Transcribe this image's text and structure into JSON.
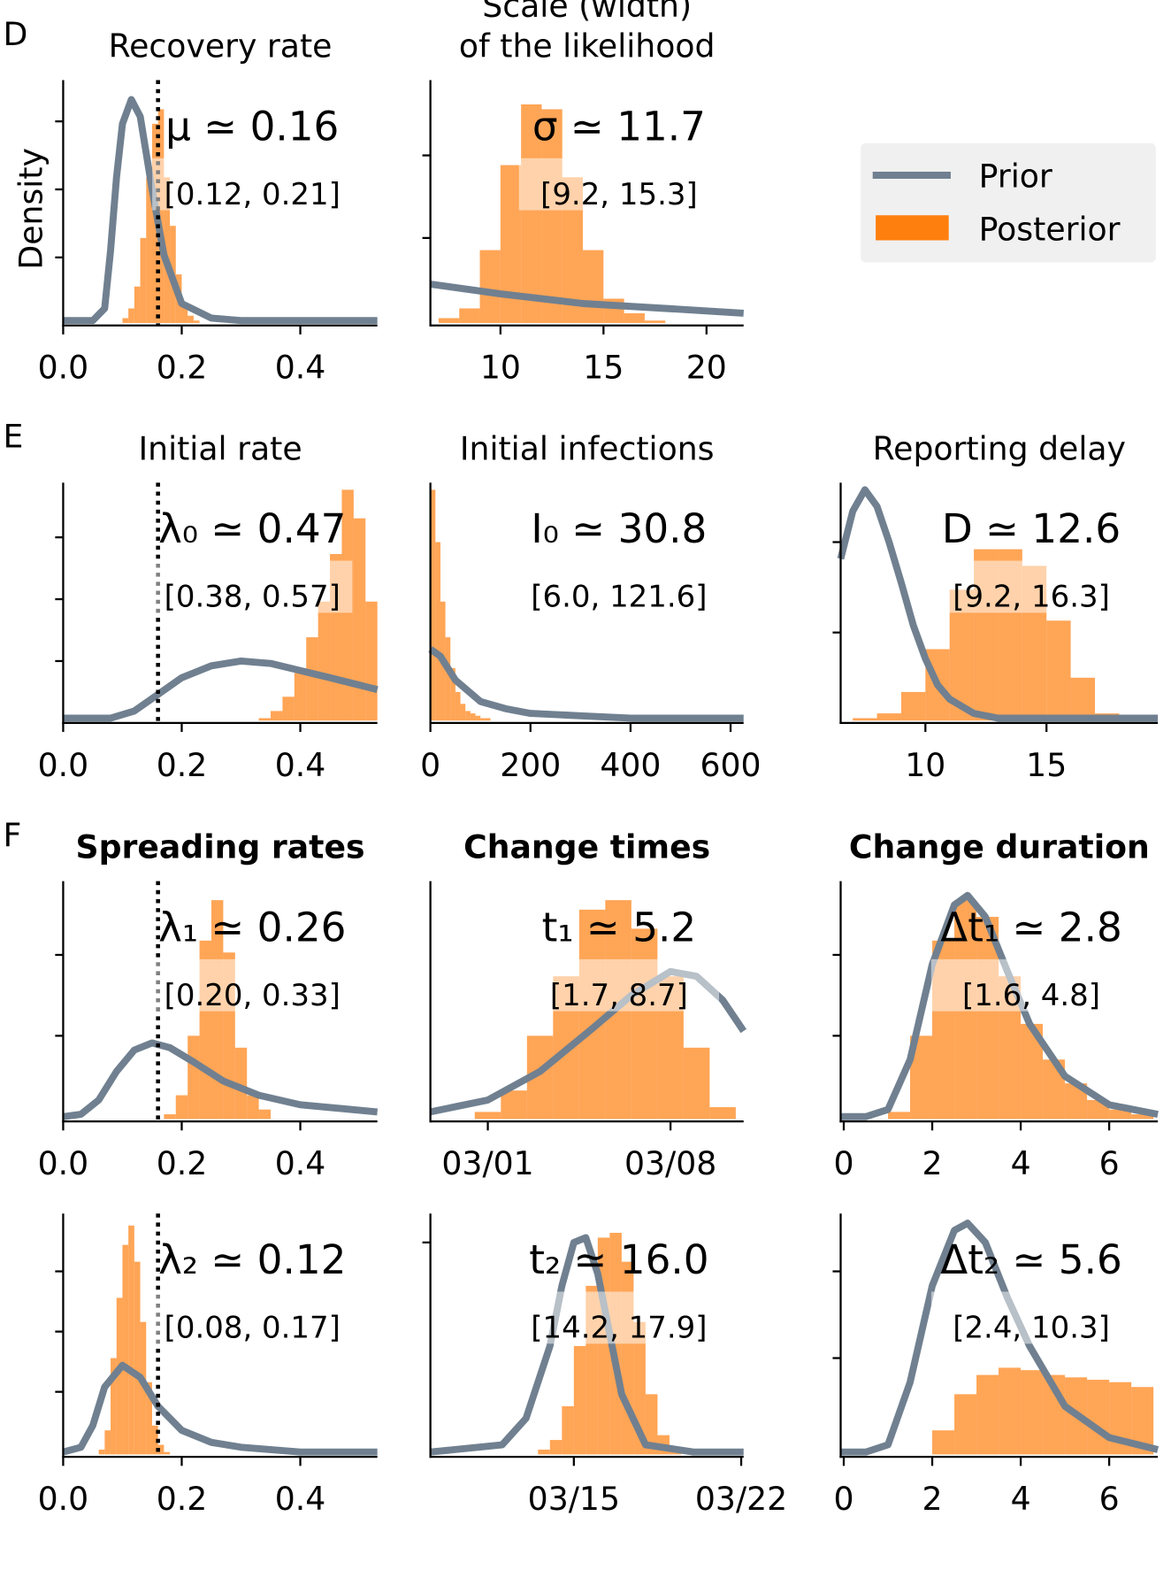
{
  "chart_data": [
    {
      "type": "histogram",
      "panel_label": "D",
      "title": [
        "Recovery rate"
      ],
      "ylabel": "Density",
      "legend": "upper right",
      "annotation": "μ ≃ 0.16",
      "interval": "[0.12, 0.21]",
      "vline": 0.16,
      "xlim": [
        0,
        0.53
      ],
      "xticks": [
        {
          "value": 0,
          "label": "0.0"
        },
        0.2,
        0.4
      ],
      "ylim": [
        -0.01,
        1
      ],
      "yticks": [
        0.27,
        0.55,
        0.83
      ],
      "series": [
        {
          "name": "Prior",
          "color": "#708090",
          "x": [
            0,
            0.05,
            0.07,
            0.08,
            0.09,
            0.1,
            0.115,
            0.13,
            0.15,
            0.17,
            0.2,
            0.25,
            0.3,
            0.53
          ],
          "values": [
            0.01,
            0.01,
            0.06,
            0.3,
            0.6,
            0.82,
            0.92,
            0.85,
            0.55,
            0.28,
            0.08,
            0.02,
            0.01,
            0.01
          ]
        },
        {
          "name": "Posterior",
          "color": "#ff7f0e",
          "bins": [
            0.1,
            0.11,
            0.12,
            0.13,
            0.14,
            0.15,
            0.16,
            0.17,
            0.18,
            0.19,
            0.2,
            0.21,
            0.22,
            0.23
          ],
          "values": [
            0.02,
            0.06,
            0.15,
            0.35,
            0.6,
            0.82,
            0.88,
            0.6,
            0.4,
            0.2,
            0.08,
            0.03,
            0.01
          ]
        }
      ]
    },
    {
      "type": "histogram",
      "title": [
        "Scale (width)",
        "of the likelihood"
      ],
      "annotation": "σ ≃ 11.7",
      "interval": "[9.2, 15.3]",
      "xlim": [
        6.6,
        21.8
      ],
      "xticks": [
        10,
        15,
        20
      ],
      "ylim": [
        -0.01,
        1
      ],
      "yticks": [
        0.35,
        0.69
      ],
      "series": [
        {
          "color": "#708090",
          "x": [
            6.6,
            10,
            14,
            18,
            21.8
          ],
          "values": [
            0.16,
            0.12,
            0.08,
            0.06,
            0.04
          ]
        },
        {
          "color": "#ff7f0e",
          "bins": [
            7,
            8,
            9,
            10,
            11,
            12,
            13,
            14,
            15,
            16,
            17,
            18
          ],
          "values": [
            0.02,
            0.06,
            0.3,
            0.65,
            0.9,
            0.88,
            0.6,
            0.3,
            0.1,
            0.04,
            0.01
          ]
        }
      ]
    },
    {
      "type": "histogram",
      "panel_label": "E",
      "title": [
        "Initial rate"
      ],
      "annotation": "λ₀ ≃ 0.47",
      "interval": "[0.38, 0.57]",
      "vline": 0.16,
      "xlim": [
        0,
        0.53
      ],
      "xticks": [
        {
          "value": 0,
          "label": "0.0"
        },
        0.2,
        0.4
      ],
      "ylim": [
        -0.01,
        1
      ],
      "yticks": [
        0.25,
        0.51,
        0.77
      ],
      "series": [
        {
          "color": "#708090",
          "x": [
            0,
            0.08,
            0.12,
            0.16,
            0.2,
            0.25,
            0.3,
            0.35,
            0.4,
            0.45,
            0.53
          ],
          "values": [
            0.01,
            0.01,
            0.04,
            0.11,
            0.18,
            0.23,
            0.25,
            0.24,
            0.21,
            0.18,
            0.13
          ]
        },
        {
          "color": "#ff7f0e",
          "bins": [
            0.33,
            0.35,
            0.37,
            0.39,
            0.41,
            0.43,
            0.45,
            0.47,
            0.49,
            0.51,
            0.53
          ],
          "values": [
            0.01,
            0.04,
            0.1,
            0.2,
            0.35,
            0.5,
            0.7,
            0.97,
            0.85,
            0.5
          ]
        }
      ]
    },
    {
      "type": "histogram",
      "title": [
        "Initial infections"
      ],
      "annotation": "I₀ ≃ 30.8",
      "interval": "[6.0, 121.6]",
      "xlim": [
        0,
        626
      ],
      "xticks": [
        0,
        200,
        400,
        600
      ],
      "ylim": [
        -0.01,
        1
      ],
      "yticks": [],
      "series": [
        {
          "color": "#708090",
          "x": [
            0,
            20,
            50,
            100,
            150,
            200,
            300,
            400,
            626
          ],
          "values": [
            0.3,
            0.27,
            0.17,
            0.08,
            0.05,
            0.03,
            0.02,
            0.01,
            0.01
          ]
        },
        {
          "color": "#ff7f0e",
          "bins": [
            0,
            10,
            20,
            30,
            40,
            50,
            60,
            70,
            80,
            90,
            100,
            110,
            120
          ],
          "values": [
            0.97,
            0.75,
            0.5,
            0.35,
            0.22,
            0.12,
            0.07,
            0.04,
            0.03,
            0.02,
            0.01,
            0.01
          ]
        }
      ]
    },
    {
      "type": "histogram",
      "title": [
        "Reporting delay"
      ],
      "annotation": "D ≃ 12.6",
      "interval": "[9.2, 16.3]",
      "xlim": [
        6.5,
        19.6
      ],
      "xticks": [
        10,
        15
      ],
      "ylim": [
        -0.01,
        1
      ],
      "yticks": [
        0.37,
        0.75
      ],
      "series": [
        {
          "color": "#708090",
          "x": [
            6.5,
            7,
            7.5,
            8,
            8.5,
            9,
            9.5,
            10,
            10.5,
            11,
            12,
            13,
            15,
            19.6
          ],
          "values": [
            0.68,
            0.88,
            0.97,
            0.9,
            0.75,
            0.58,
            0.4,
            0.26,
            0.15,
            0.09,
            0.03,
            0.01,
            0.01,
            0.01
          ]
        },
        {
          "color": "#ff7f0e",
          "bins": [
            7,
            8,
            9,
            10,
            11,
            12,
            13,
            14,
            15,
            16,
            17,
            18
          ],
          "values": [
            0.01,
            0.03,
            0.12,
            0.3,
            0.55,
            0.72,
            0.72,
            0.65,
            0.42,
            0.18,
            0.03
          ]
        }
      ]
    },
    {
      "type": "histogram",
      "panel_label": "F",
      "title": [
        "Spreading rates"
      ],
      "title_weight": "bold",
      "annotation": "λ₁ ≃ 0.26",
      "interval": "[0.20, 0.33]",
      "vline": 0.16,
      "xlim": [
        0,
        0.53
      ],
      "xticks": [
        {
          "value": 0,
          "label": "0.0"
        },
        0.2,
        0.4
      ],
      "ylim": [
        -0.01,
        1
      ],
      "yticks": [
        0.35,
        0.69
      ],
      "series": [
        {
          "color": "#708090",
          "x": [
            0,
            0.03,
            0.06,
            0.09,
            0.12,
            0.15,
            0.18,
            0.22,
            0.27,
            0.33,
            0.4,
            0.53
          ],
          "values": [
            0.01,
            0.02,
            0.08,
            0.2,
            0.29,
            0.32,
            0.3,
            0.24,
            0.16,
            0.1,
            0.06,
            0.03
          ]
        },
        {
          "color": "#ff7f0e",
          "bins": [
            0.17,
            0.19,
            0.21,
            0.23,
            0.25,
            0.27,
            0.29,
            0.31,
            0.33,
            0.35
          ],
          "values": [
            0.02,
            0.1,
            0.35,
            0.75,
            0.92,
            0.7,
            0.3,
            0.1,
            0.04
          ]
        }
      ]
    },
    {
      "type": "histogram",
      "title": [
        "Change times"
      ],
      "title_weight": "bold",
      "annotation": "t₁ ≃ 5.2",
      "interval": "[1.7, 8.7]",
      "xlim": [
        -2.2,
        9.8
      ],
      "xticks": [
        {
          "value": 0,
          "label": "03/01"
        },
        {
          "value": 7,
          "label": "03/08"
        }
      ],
      "ylim": [
        -0.01,
        1
      ],
      "yticks": [],
      "series": [
        {
          "color": "#708090",
          "x": [
            -2.2,
            0,
            2,
            4,
            5.5,
            7,
            8,
            9,
            9.8
          ],
          "values": [
            0.03,
            0.08,
            0.2,
            0.38,
            0.52,
            0.62,
            0.6,
            0.5,
            0.37
          ]
        },
        {
          "color": "#ff7f0e",
          "bins": [
            -0.5,
            0.5,
            1.5,
            2.5,
            3.5,
            4.5,
            5.5,
            6.5,
            7.5,
            8.5,
            9.5
          ],
          "values": [
            0.03,
            0.12,
            0.35,
            0.6,
            0.88,
            0.92,
            0.8,
            0.6,
            0.3,
            0.05
          ]
        }
      ]
    },
    {
      "type": "histogram",
      "title": [
        "Change duration"
      ],
      "title_weight": "bold",
      "annotation": "Δt₁ ≃ 2.8",
      "interval": "[1.6, 4.8]",
      "xlim": [
        -0.07,
        7.1
      ],
      "xticks": [
        0,
        2,
        4,
        6
      ],
      "ylim": [
        -0.01,
        1
      ],
      "yticks": [
        0.35,
        0.69
      ],
      "series": [
        {
          "color": "#708090",
          "x": [
            -0.07,
            0.5,
            1,
            1.5,
            2,
            2.5,
            2.8,
            3.2,
            3.7,
            4.2,
            5,
            6,
            7.1
          ],
          "values": [
            0.01,
            0.01,
            0.04,
            0.25,
            0.65,
            0.9,
            0.94,
            0.85,
            0.62,
            0.4,
            0.18,
            0.06,
            0.02
          ]
        },
        {
          "color": "#ff7f0e",
          "bins": [
            1,
            1.5,
            2,
            2.5,
            3,
            3.5,
            4,
            4.5,
            5,
            5.5,
            6,
            6.5,
            7
          ],
          "values": [
            0.03,
            0.35,
            0.75,
            0.92,
            0.85,
            0.6,
            0.4,
            0.25,
            0.15,
            0.08,
            0.04,
            0.02
          ]
        }
      ]
    },
    {
      "type": "histogram",
      "annotation": "λ₂ ≃ 0.12",
      "interval": "[0.08, 0.17]",
      "vline": 0.16,
      "xlim": [
        0,
        0.53
      ],
      "xticks": [
        {
          "value": 0,
          "label": "0.0"
        },
        0.2,
        0.4
      ],
      "ylim": [
        -0.01,
        1
      ],
      "yticks": [
        0.26,
        0.51,
        0.76
      ],
      "series": [
        {
          "color": "#708090",
          "x": [
            0,
            0.03,
            0.05,
            0.07,
            0.1,
            0.13,
            0.16,
            0.2,
            0.25,
            0.3,
            0.4,
            0.53
          ],
          "values": [
            0.01,
            0.03,
            0.12,
            0.28,
            0.37,
            0.32,
            0.2,
            0.1,
            0.05,
            0.03,
            0.01,
            0.01
          ]
        },
        {
          "color": "#ff7f0e",
          "bins": [
            0.06,
            0.07,
            0.08,
            0.09,
            0.1,
            0.11,
            0.12,
            0.13,
            0.14,
            0.15,
            0.16,
            0.17,
            0.18
          ],
          "values": [
            0.02,
            0.1,
            0.4,
            0.65,
            0.87,
            0.95,
            0.8,
            0.55,
            0.3,
            0.12,
            0.04,
            0.01
          ]
        }
      ]
    },
    {
      "type": "histogram",
      "annotation": "t₂ ≃ 16.0",
      "interval": "[14.2, 17.9]",
      "xlim": [
        8,
        21.1
      ],
      "xticks": [
        {
          "value": 14,
          "label": "03/15"
        },
        {
          "value": 21,
          "label": "03/22"
        }
      ],
      "ylim": [
        -0.01,
        1
      ],
      "yticks": [
        0.88
      ],
      "series": [
        {
          "color": "#708090",
          "x": [
            8,
            11,
            12,
            13,
            13.5,
            14,
            14.5,
            15,
            15.5,
            16,
            17,
            19,
            21.1
          ],
          "values": [
            0.01,
            0.04,
            0.15,
            0.45,
            0.7,
            0.88,
            0.9,
            0.75,
            0.5,
            0.25,
            0.04,
            0.01,
            0.01
          ]
        },
        {
          "color": "#ff7f0e",
          "bins": [
            12.5,
            13,
            13.5,
            14,
            14.5,
            15,
            15.5,
            16,
            16.5,
            17,
            17.5,
            18,
            18.5
          ],
          "values": [
            0.02,
            0.06,
            0.2,
            0.45,
            0.7,
            0.9,
            0.92,
            0.8,
            0.55,
            0.25,
            0.08,
            0.02
          ]
        }
      ]
    },
    {
      "type": "histogram",
      "annotation": "Δt₂ ≃ 5.6",
      "interval": "[2.4, 10.3]",
      "xlim": [
        -0.07,
        7.1
      ],
      "xticks": [
        0,
        2,
        4,
        6
      ],
      "ylim": [
        -0.01,
        1
      ],
      "yticks": [
        0.4,
        0.76
      ],
      "series": [
        {
          "color": "#708090",
          "x": [
            -0.07,
            0.5,
            1,
            1.5,
            2,
            2.5,
            2.8,
            3.2,
            3.7,
            4.2,
            5,
            6,
            7.1
          ],
          "values": [
            0.01,
            0.01,
            0.04,
            0.3,
            0.7,
            0.93,
            0.96,
            0.88,
            0.65,
            0.45,
            0.2,
            0.07,
            0.02
          ]
        },
        {
          "color": "#ff7f0e",
          "bins": [
            2,
            2.5,
            3,
            3.5,
            4,
            4.5,
            5,
            5.5,
            6,
            6.5,
            7
          ],
          "values": [
            0.1,
            0.25,
            0.33,
            0.36,
            0.35,
            0.33,
            0.32,
            0.31,
            0.3,
            0.28
          ]
        }
      ]
    }
  ]
}
